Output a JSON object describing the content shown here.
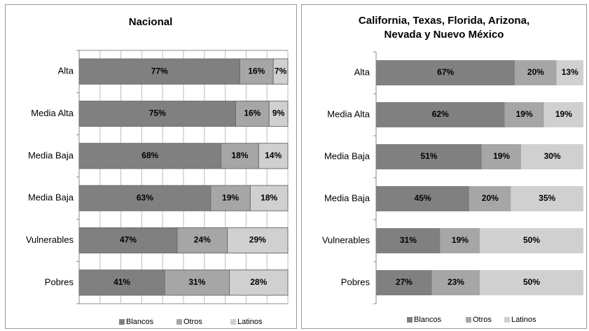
{
  "chart_data": [
    {
      "type": "stacked-bar-horizontal",
      "title": "Nacional",
      "categories": [
        "Alta",
        "Media Alta",
        "Media Baja",
        "Media Baja",
        "Vulnerables",
        "Pobres"
      ],
      "series": [
        {
          "name": "Blancos",
          "color": "#808080",
          "values": [
            77,
            75,
            68,
            63,
            47,
            41
          ],
          "value_labels": [
            "77%",
            "75%",
            "68%",
            "63%",
            "47%",
            "41%"
          ]
        },
        {
          "name": "Otros",
          "color": "#a6a6a6",
          "values": [
            16,
            16,
            18,
            19,
            24,
            31
          ],
          "value_labels": [
            "16%",
            "16%",
            "18%",
            "19%",
            "24%",
            "31%"
          ]
        },
        {
          "name": "Latinos",
          "color": "#d0d0d0",
          "values": [
            7,
            9,
            14,
            18,
            29,
            28
          ],
          "value_labels": [
            "7%",
            "9%",
            "14%",
            "18%",
            "29%",
            "28%"
          ]
        }
      ],
      "xlim": [
        0,
        100
      ],
      "xticks": [
        0,
        10,
        20,
        30,
        40,
        50,
        60,
        70,
        80,
        90,
        100
      ],
      "grid": true,
      "legend": "bottom"
    },
    {
      "type": "stacked-bar-horizontal",
      "title": [
        "California, Texas, Florida, Arizona,",
        "Nevada y Nuevo México"
      ],
      "categories": [
        "Alta",
        "Media Alta",
        "Media Baja",
        "Media Baja",
        "Vulnerables",
        "Pobres"
      ],
      "series": [
        {
          "name": "Blancos",
          "color": "#808080",
          "values": [
            67,
            62,
            51,
            45,
            31,
            27
          ],
          "value_labels": [
            "67%",
            "62%",
            "51%",
            "45%",
            "31%",
            "27%"
          ]
        },
        {
          "name": "Otros",
          "color": "#a6a6a6",
          "values": [
            20,
            19,
            19,
            20,
            19,
            23
          ],
          "value_labels": [
            "20%",
            "19%",
            "19%",
            "20%",
            "19%",
            "23%"
          ]
        },
        {
          "name": "Latinos",
          "color": "#d0d0d0",
          "values": [
            13,
            19,
            30,
            35,
            50,
            50
          ],
          "value_labels": [
            "13%",
            "19%",
            "30%",
            "35%",
            "50%",
            "50%"
          ]
        }
      ],
      "xlim": [
        0,
        100
      ],
      "grid": false,
      "legend": "bottom"
    }
  ]
}
